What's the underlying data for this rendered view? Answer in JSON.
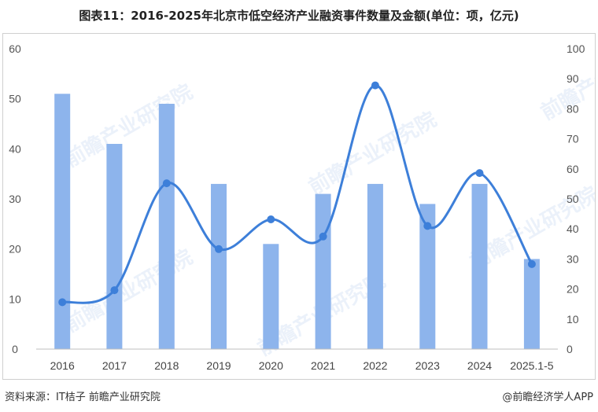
{
  "header": {
    "title": "图表11：2016-2025年北京市低空经济产业融资事件数量及金额(单位：项，亿元)"
  },
  "footer": {
    "source": "资料来源：IT桔子 前瞻产业研究院",
    "brand": "@前瞻经济学人APP"
  },
  "watermark": {
    "text": "前瞻产业研究院"
  },
  "colors": {
    "bar": "#8db4ec",
    "line": "#3d7fd9"
  },
  "chart_data": {
    "type": "bar",
    "categories": [
      "2016",
      "2017",
      "2018",
      "2019",
      "2020",
      "2021",
      "2022",
      "2023",
      "2024",
      "2025.1-5"
    ],
    "series": [
      {
        "type": "bar",
        "axis": "left",
        "values": [
          51,
          41,
          49,
          33,
          21,
          31,
          33,
          29,
          33,
          18
        ]
      },
      {
        "type": "line",
        "axis": "right",
        "smooth": true,
        "values": [
          15.6,
          19.6,
          55.2,
          33.3,
          43.2,
          37.5,
          87.8,
          41.0,
          58.6,
          28.3
        ]
      }
    ],
    "y_left": {
      "ylim": [
        0,
        60
      ],
      "ticks": [
        0,
        10,
        20,
        30,
        40,
        50,
        60
      ]
    },
    "y_right": {
      "ylim": [
        0,
        100
      ],
      "ticks": [
        0,
        10,
        20,
        30,
        40,
        50,
        60,
        70,
        80,
        90,
        100
      ]
    },
    "grid": false,
    "legend": "none"
  }
}
